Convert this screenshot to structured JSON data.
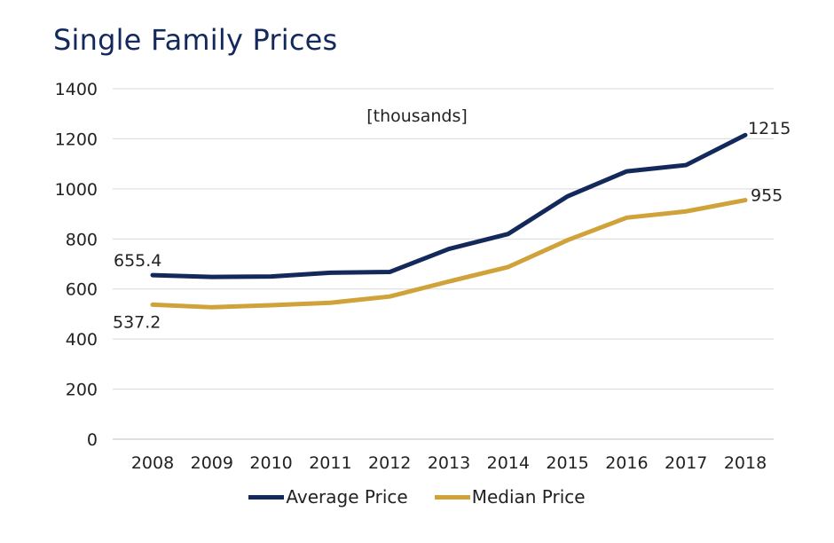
{
  "chart_data": {
    "type": "line",
    "title": "Single Family Prices",
    "annotation": "[thousands]",
    "xlabel": "",
    "ylabel": "",
    "categories": [
      "2008",
      "2009",
      "2010",
      "2011",
      "2012",
      "2013",
      "2014",
      "2015",
      "2016",
      "2017",
      "2018"
    ],
    "ylim": [
      0,
      1400
    ],
    "yticks": [
      "0",
      "200",
      "400",
      "600",
      "800",
      "1000",
      "1200",
      "1400"
    ],
    "grid": true,
    "legend_position": "bottom",
    "series": [
      {
        "name": "Average Price",
        "color": "#14295b",
        "values": [
          655.4,
          648,
          650,
          665,
          668,
          760,
          820,
          970,
          1070,
          1095,
          1215
        ],
        "labels": {
          "first": "655.4",
          "last": "1215"
        }
      },
      {
        "name": "Median Price",
        "color": "#d0a23a",
        "values": [
          537.2,
          527,
          535,
          545,
          570,
          630,
          688,
          795,
          885,
          910,
          955
        ],
        "labels": {
          "first": "537.2",
          "last": "955"
        }
      }
    ]
  }
}
